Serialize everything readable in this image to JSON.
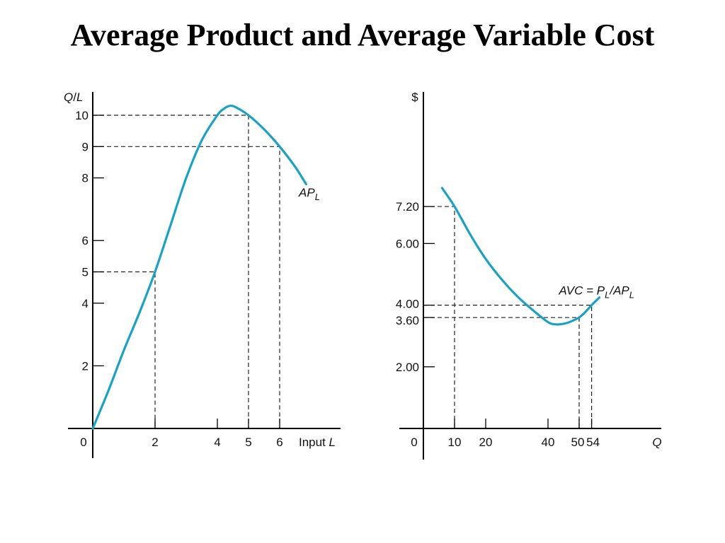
{
  "slide": {
    "title": "Average Product and Average Variable Cost"
  },
  "style": {
    "curve_color": "#1aa1c4",
    "axis_color": "#000000",
    "text_color": "#111111"
  },
  "chart_data": [
    {
      "type": "line",
      "xlabel_prefix": "Input",
      "xlabel_var": "L",
      "ylabel_top": "Q",
      "ylabel_bottom": "L",
      "origin_label": "0",
      "xlim": [
        0,
        8
      ],
      "ylim": [
        0,
        10.8
      ],
      "x_ticks": [
        {
          "value": 2,
          "label": "2"
        },
        {
          "value": 4,
          "label": "4"
        },
        {
          "value": 5,
          "label": "5"
        },
        {
          "value": 6,
          "label": "6"
        }
      ],
      "y_ticks": [
        {
          "value": 2,
          "label": "2"
        },
        {
          "value": 4,
          "label": "4"
        },
        {
          "value": 5,
          "label": "5"
        },
        {
          "value": 6,
          "label": "6"
        },
        {
          "value": 8,
          "label": "8"
        },
        {
          "value": 9,
          "label": "9"
        },
        {
          "value": 10,
          "label": "10"
        }
      ],
      "guides": [
        {
          "x": 2,
          "y": 5
        },
        {
          "x": 5,
          "y": 10
        },
        {
          "x": 6,
          "y": 9
        }
      ],
      "series": [
        {
          "label_main": "AP",
          "label_sub": "L",
          "label_at": {
            "x": 6.75,
            "y": 7.4
          },
          "x": [
            0,
            0.5,
            1,
            1.5,
            2,
            2.5,
            3,
            3.5,
            4,
            4.2,
            4.4,
            4.6,
            5,
            5.5,
            6,
            6.5,
            6.85
          ],
          "y": [
            0,
            1.2,
            2.5,
            3.7,
            5,
            6.5,
            8,
            9.2,
            10,
            10.2,
            10.3,
            10.25,
            10,
            9.55,
            9,
            8.35,
            7.8
          ]
        }
      ]
    },
    {
      "type": "line",
      "xlabel": "Q",
      "ylabel": "$",
      "origin_label": "0",
      "xlim": [
        0,
        76
      ],
      "ylim": [
        0,
        10.5
      ],
      "x_ticks": [
        {
          "value": 10,
          "label": "10"
        },
        {
          "value": 20,
          "label": "20"
        },
        {
          "value": 40,
          "label": "40"
        },
        {
          "value": 50,
          "label": "50"
        },
        {
          "value": 54,
          "label": "54"
        }
      ],
      "y_ticks": [
        {
          "value": 2,
          "label": "2.00"
        },
        {
          "value": 3.6,
          "label": "3.60"
        },
        {
          "value": 4,
          "label": "4.00"
        },
        {
          "value": 6,
          "label": "6.00"
        },
        {
          "value": 7.2,
          "label": "7.20"
        }
      ],
      "guides": [
        {
          "x": 10,
          "y": 7.2
        },
        {
          "x": 50,
          "y": 3.6
        },
        {
          "x": 54,
          "y": 4
        }
      ],
      "series": [
        {
          "label_parts": [
            "AVC = P",
            "L",
            "/AP",
            "L"
          ],
          "label_at": {
            "x": 43.5,
            "y": 4.25
          },
          "x": [
            6,
            10,
            15,
            20,
            25,
            30,
            35,
            40,
            42,
            44,
            46,
            48,
            50,
            52,
            54,
            56.5
          ],
          "y": [
            7.8,
            7.2,
            6.3,
            5.5,
            4.85,
            4.3,
            3.85,
            3.45,
            3.38,
            3.38,
            3.42,
            3.5,
            3.6,
            3.78,
            4.0,
            4.25
          ]
        }
      ]
    }
  ]
}
